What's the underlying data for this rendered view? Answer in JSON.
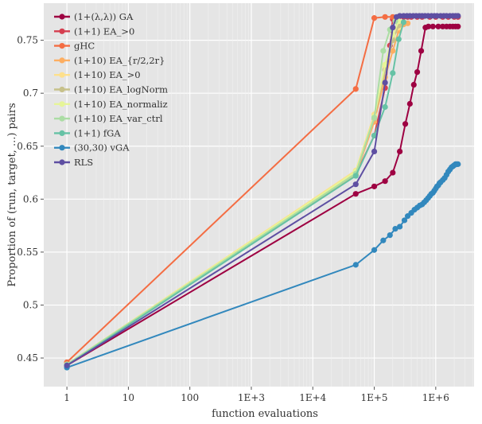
{
  "chart_data": {
    "type": "line",
    "title": "",
    "xlabel": "function evaluations",
    "ylabel": "Proportion of (run, target, ...) pairs",
    "xscale": "log10",
    "xlim": [
      0.42,
      4200000
    ],
    "ylim": [
      0.423,
      0.785
    ],
    "x_ticks": [
      {
        "value": 1,
        "label": "1"
      },
      {
        "value": 10,
        "label": "10"
      },
      {
        "value": 100,
        "label": "100"
      },
      {
        "value": 1000,
        "label": "1E+3"
      },
      {
        "value": 10000,
        "label": "1E+4"
      },
      {
        "value": 100000,
        "label": "1E+5"
      },
      {
        "value": 1000000,
        "label": "1E+6"
      }
    ],
    "y_ticks": [
      {
        "value": 0.45,
        "label": "0.45"
      },
      {
        "value": 0.5,
        "label": "0.5"
      },
      {
        "value": 0.55,
        "label": "0.55"
      },
      {
        "value": 0.6,
        "label": "0.6"
      },
      {
        "value": 0.65,
        "label": "0.65"
      },
      {
        "value": 0.7,
        "label": "0.7"
      },
      {
        "value": 0.75,
        "label": "0.75"
      }
    ],
    "grid": true,
    "legend_position": "top-left",
    "background": "#e5e5e5",
    "series": [
      {
        "name": "(1+(λ,λ)) GA",
        "color": "#9e0142",
        "points": [
          [
            1,
            0.443
          ],
          [
            50000,
            0.605
          ],
          [
            100000,
            0.612
          ],
          [
            150000,
            0.617
          ],
          [
            200000,
            0.625
          ],
          [
            260000,
            0.645
          ],
          [
            320000,
            0.671
          ],
          [
            380000,
            0.69
          ],
          [
            440000,
            0.708
          ],
          [
            500000,
            0.72
          ],
          [
            580000,
            0.74
          ],
          [
            680000,
            0.762
          ],
          [
            760000,
            0.763
          ],
          [
            900000,
            0.763
          ],
          [
            1100000,
            0.763
          ],
          [
            1300000,
            0.763
          ],
          [
            1500000,
            0.763
          ],
          [
            1700000,
            0.763
          ],
          [
            1900000,
            0.763
          ],
          [
            2100000,
            0.763
          ],
          [
            2300000,
            0.763
          ]
        ]
      },
      {
        "name": "(1+1) EA_>0",
        "color": "#d53e4f",
        "points": [
          [
            1,
            0.444
          ],
          [
            50000,
            0.623
          ],
          [
            100000,
            0.66
          ],
          [
            150000,
            0.705
          ],
          [
            180000,
            0.745
          ],
          [
            200000,
            0.77
          ],
          [
            250000,
            0.772
          ],
          [
            300000,
            0.772
          ],
          [
            350000,
            0.772
          ],
          [
            400000,
            0.772
          ],
          [
            500000,
            0.772
          ],
          [
            600000,
            0.772
          ],
          [
            800000,
            0.772
          ],
          [
            1000000,
            0.772
          ],
          [
            1300000,
            0.772
          ],
          [
            1600000,
            0.772
          ],
          [
            2000000,
            0.772
          ],
          [
            2300000,
            0.772
          ]
        ]
      },
      {
        "name": "gHC",
        "color": "#f46d43",
        "points": [
          [
            1,
            0.446
          ],
          [
            50000,
            0.704
          ],
          [
            100000,
            0.771
          ],
          [
            150000,
            0.772
          ],
          [
            200000,
            0.772
          ]
        ]
      },
      {
        "name": "(1+10) EA_{r/2,2r}",
        "color": "#fdae61",
        "points": [
          [
            1,
            0.444
          ],
          [
            50000,
            0.623
          ],
          [
            100000,
            0.673
          ],
          [
            150000,
            0.715
          ],
          [
            200000,
            0.74
          ],
          [
            250000,
            0.759
          ],
          [
            300000,
            0.765
          ],
          [
            350000,
            0.766
          ]
        ]
      },
      {
        "name": "(1+10) EA_>0",
        "color": "#fee08b",
        "points": [
          [
            1,
            0.444
          ],
          [
            50000,
            0.627
          ],
          [
            100000,
            0.68
          ],
          [
            150000,
            0.725
          ],
          [
            200000,
            0.752
          ],
          [
            250000,
            0.762
          ]
        ]
      },
      {
        "name": "(1+10) EA_logNorm",
        "color": "#c7c18a",
        "points": [
          [
            1,
            0.444
          ],
          [
            50000,
            0.625
          ],
          [
            100000,
            0.676
          ],
          [
            150000,
            0.722
          ],
          [
            200000,
            0.75
          ],
          [
            250000,
            0.764
          ]
        ]
      },
      {
        "name": "(1+10) EA_normalized",
        "color": "#e6f598",
        "points": [
          [
            1,
            0.444
          ],
          [
            50000,
            0.626
          ],
          [
            100000,
            0.678
          ],
          [
            150000,
            0.727
          ],
          [
            200000,
            0.755
          ],
          [
            250000,
            0.768
          ]
        ]
      },
      {
        "name": "(1+10) EA_var_ctrl",
        "color": "#abdda4",
        "points": [
          [
            1,
            0.444
          ],
          [
            50000,
            0.624
          ],
          [
            100000,
            0.677
          ],
          [
            140000,
            0.74
          ],
          [
            180000,
            0.76
          ],
          [
            220000,
            0.768
          ]
        ]
      },
      {
        "name": "(1+1) fGA",
        "color": "#66c2a5",
        "points": [
          [
            1,
            0.443
          ],
          [
            50000,
            0.622
          ],
          [
            100000,
            0.66
          ],
          [
            150000,
            0.687
          ],
          [
            200000,
            0.719
          ],
          [
            250000,
            0.751
          ],
          [
            300000,
            0.767
          ]
        ]
      },
      {
        "name": "(30,30) vGA",
        "color": "#3288bd",
        "points": [
          [
            1,
            0.441
          ],
          [
            50000,
            0.538
          ],
          [
            100000,
            0.552
          ],
          [
            140000,
            0.561
          ],
          [
            180000,
            0.566
          ],
          [
            220000,
            0.572
          ],
          [
            260000,
            0.574
          ],
          [
            310000,
            0.58
          ],
          [
            350000,
            0.584
          ],
          [
            400000,
            0.587
          ],
          [
            450000,
            0.59
          ],
          [
            500000,
            0.592
          ],
          [
            550000,
            0.594
          ],
          [
            600000,
            0.595
          ],
          [
            650000,
            0.597
          ],
          [
            700000,
            0.599
          ],
          [
            750000,
            0.601
          ],
          [
            800000,
            0.603
          ],
          [
            850000,
            0.605
          ],
          [
            900000,
            0.606
          ],
          [
            950000,
            0.608
          ],
          [
            1000000,
            0.61
          ],
          [
            1050000,
            0.612
          ],
          [
            1100000,
            0.613
          ],
          [
            1150000,
            0.615
          ],
          [
            1200000,
            0.616
          ],
          [
            1300000,
            0.618
          ],
          [
            1400000,
            0.62
          ],
          [
            1500000,
            0.623
          ],
          [
            1600000,
            0.626
          ],
          [
            1700000,
            0.628
          ],
          [
            1800000,
            0.63
          ],
          [
            1900000,
            0.631
          ],
          [
            2000000,
            0.632
          ],
          [
            2100000,
            0.633
          ],
          [
            2200000,
            0.633
          ],
          [
            2300000,
            0.633
          ]
        ]
      },
      {
        "name": "RLS",
        "color": "#5e4fa2",
        "points": [
          [
            1,
            0.443
          ],
          [
            50000,
            0.614
          ],
          [
            100000,
            0.645
          ],
          [
            150000,
            0.71
          ],
          [
            200000,
            0.762
          ],
          [
            230000,
            0.772
          ],
          [
            260000,
            0.773
          ],
          [
            300000,
            0.773
          ],
          [
            340000,
            0.773
          ],
          [
            380000,
            0.773
          ],
          [
            430000,
            0.773
          ],
          [
            480000,
            0.773
          ],
          [
            540000,
            0.773
          ],
          [
            600000,
            0.773
          ],
          [
            670000,
            0.773
          ],
          [
            750000,
            0.773
          ],
          [
            850000,
            0.773
          ],
          [
            950000,
            0.773
          ],
          [
            1050000,
            0.773
          ],
          [
            1200000,
            0.773
          ],
          [
            1350000,
            0.773
          ],
          [
            1500000,
            0.773
          ],
          [
            1700000,
            0.773
          ],
          [
            1900000,
            0.773
          ],
          [
            2100000,
            0.773
          ],
          [
            2300000,
            0.773
          ]
        ]
      }
    ],
    "legend_labels": [
      "(1+(λ,λ)) GA",
      "(1+1) EA_>0",
      "gHC",
      "(1+10) EA_{r/2,2r}",
      "(1+10) EA_>0",
      "(1+10) EA_logNorm",
      "(1+10) EA_normaliz",
      "(1+10) EA_var_ctrl",
      "(1+1) fGA",
      "(30,30) vGA",
      "RLS"
    ]
  }
}
